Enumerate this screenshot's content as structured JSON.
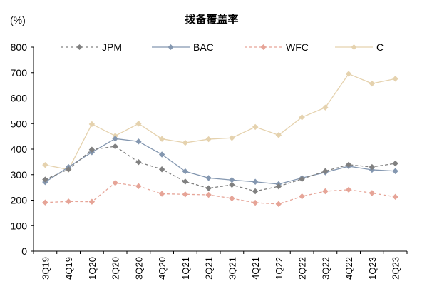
{
  "chart_data": {
    "type": "line",
    "title": "拨备覆盖率",
    "ylabel": "(%)",
    "ylim": [
      0,
      800
    ],
    "yticks": [
      0,
      100,
      200,
      300,
      400,
      500,
      600,
      700,
      800
    ],
    "grid": false,
    "legend_position": "top",
    "categories": [
      "3Q19",
      "4Q19",
      "1Q20",
      "2Q20",
      "3Q20",
      "4Q20",
      "1Q21",
      "2Q21",
      "3Q21",
      "4Q21",
      "1Q22",
      "2Q22",
      "3Q22",
      "4Q22",
      "1Q23",
      "2Q23"
    ],
    "series": [
      {
        "name": "JPM",
        "color": "#808080",
        "dashed": true,
        "values": [
          281,
          321,
          398,
          411,
          349,
          321,
          273,
          247,
          260,
          235,
          254,
          283,
          314,
          339,
          330,
          344
        ]
      },
      {
        "name": "BAC",
        "color": "#8497b0",
        "dashed": false,
        "values": [
          271,
          330,
          388,
          441,
          430,
          379,
          313,
          287,
          279,
          272,
          263,
          287,
          309,
          333,
          319,
          314
        ]
      },
      {
        "name": "WFC",
        "color": "#e6a497",
        "dashed": true,
        "values": [
          191,
          195,
          194,
          268,
          255,
          225,
          223,
          221,
          207,
          190,
          185,
          215,
          235,
          241,
          228,
          213
        ]
      },
      {
        "name": "C",
        "color": "#e5d2ae",
        "dashed": false,
        "values": [
          338,
          320,
          498,
          452,
          500,
          440,
          425,
          439,
          444,
          487,
          455,
          525,
          563,
          695,
          657,
          676
        ]
      }
    ]
  }
}
